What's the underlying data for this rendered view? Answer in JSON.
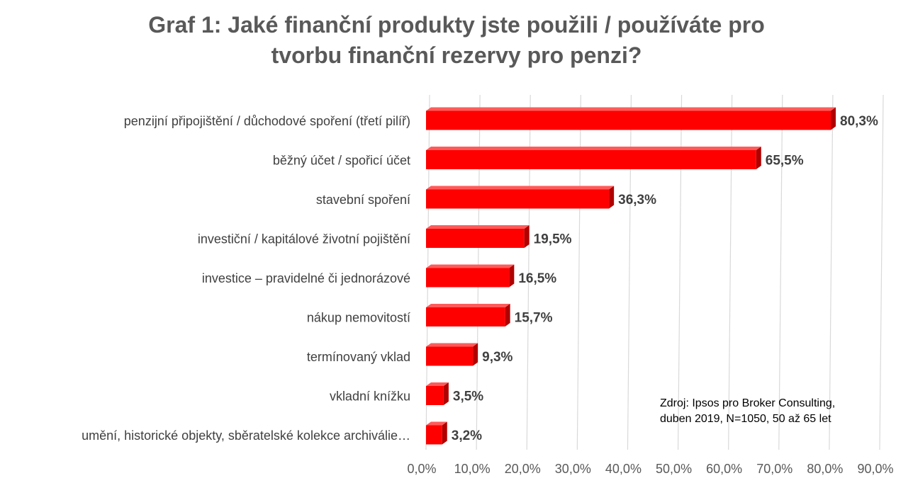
{
  "chart_data": {
    "type": "bar",
    "orientation": "horizontal",
    "title_lines": [
      "Graf 1: Jaké finanční produkty jste použili / používáte pro",
      "tvorbu finanční rezervy pro penzi?"
    ],
    "categories": [
      "penzijní připojištění / důchodové spoření (třetí pilíř)",
      "běžný účet / spořicí účet",
      "stavební spoření",
      "investiční / kapitálové životní pojištění",
      "investice – pravidelné či jednorázové",
      "nákup nemovitostí",
      "termínovaný vklad",
      "vkladní knížku",
      "umění, historické objekty, sběratelské kolekce archiválie…"
    ],
    "values": [
      80.3,
      65.5,
      36.3,
      19.5,
      16.5,
      15.7,
      9.3,
      3.5,
      3.2
    ],
    "value_labels": [
      "80,3%",
      "65,5%",
      "36,3%",
      "19,5%",
      "16,5%",
      "15,7%",
      "9,3%",
      "3,5%",
      "3,2%"
    ],
    "x_ticks": [
      0,
      10,
      20,
      30,
      40,
      50,
      60,
      70,
      80,
      90
    ],
    "x_tick_labels": [
      "0,0%",
      "10,0%",
      "20,0%",
      "30,0%",
      "40,0%",
      "50,0%",
      "60,0%",
      "70,0%",
      "80,0%",
      "90,0%"
    ],
    "xlim": [
      0,
      90
    ],
    "grid": true,
    "bar_style": "3d",
    "colors": {
      "bar": "#ff0000",
      "bar_side": "#b00000",
      "bar_top": "#ff5a5a",
      "grid": "#d9d9d9",
      "title": "#595959"
    },
    "source_lines": [
      "Zdroj: Ipsos pro Broker Consulting,",
      "duben 2019, N=1050, 50 až 65 let"
    ]
  }
}
